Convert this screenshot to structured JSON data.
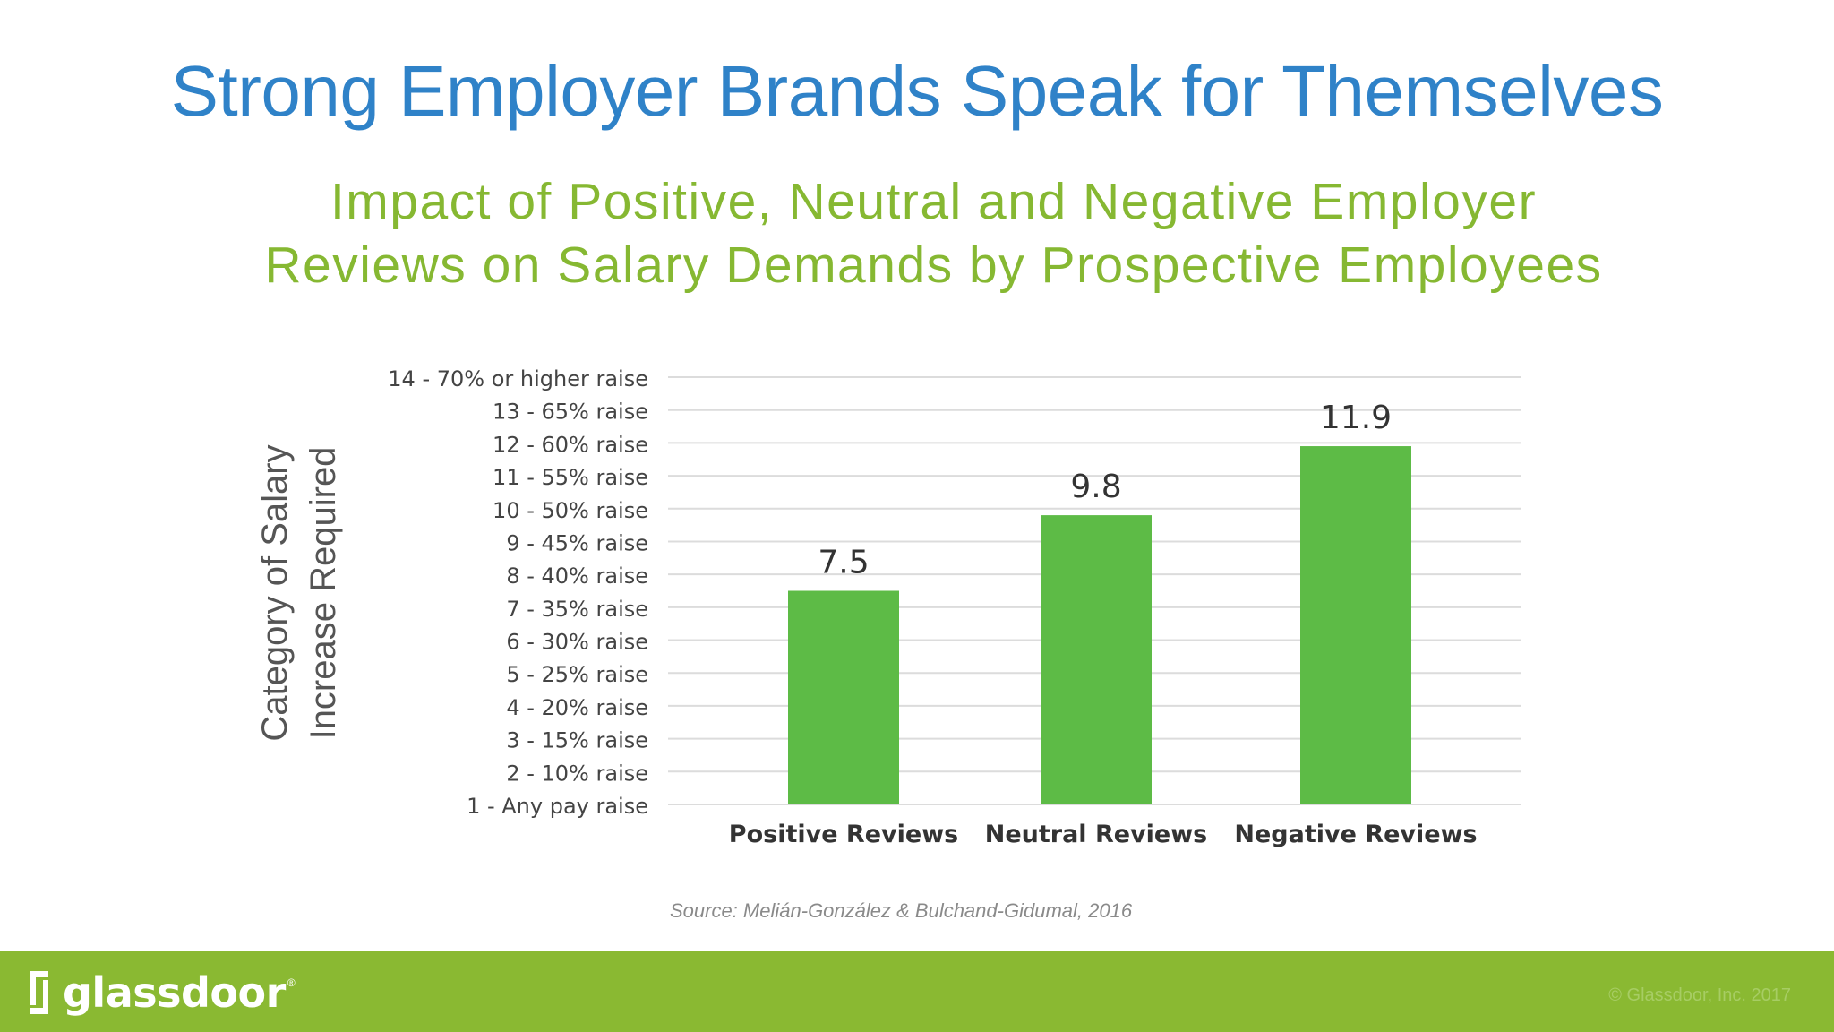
{
  "slide": {
    "title": "Strong Employer Brands Speak for Themselves"
  },
  "chart_data": {
    "type": "bar",
    "title": "Impact of Positive, Neutral and Negative Employer Reviews on Salary Demands by Prospective Employees",
    "title_lines": [
      "Impact of Positive, Neutral and Negative Employer",
      "Reviews on Salary Demands by Prospective Employees"
    ],
    "ylabel": "Category of Salary Increase Required",
    "ylabel_lines": [
      "Category of Salary",
      "Increase Required"
    ],
    "xlabel": "",
    "categories": [
      "Positive Reviews",
      "Neutral Reviews",
      "Negative Reviews"
    ],
    "values": [
      7.5,
      9.8,
      11.9
    ],
    "data_labels": [
      "7.5",
      "9.8",
      "11.9"
    ],
    "ylim": [
      1,
      14
    ],
    "y_ticks": [
      {
        "value": 1,
        "label": "1 - Any pay raise"
      },
      {
        "value": 2,
        "label": "2 - 10% raise"
      },
      {
        "value": 3,
        "label": "3 - 15% raise"
      },
      {
        "value": 4,
        "label": "4 - 20% raise"
      },
      {
        "value": 5,
        "label": "5 - 25% raise"
      },
      {
        "value": 6,
        "label": "6 - 30% raise"
      },
      {
        "value": 7,
        "label": "7 - 35% raise"
      },
      {
        "value": 8,
        "label": "8 - 40% raise"
      },
      {
        "value": 9,
        "label": "9 - 45% raise"
      },
      {
        "value": 10,
        "label": "10 - 50% raise"
      },
      {
        "value": 11,
        "label": "11 - 55% raise"
      },
      {
        "value": 12,
        "label": "12 - 60% raise"
      },
      {
        "value": 13,
        "label": "13 - 65% raise"
      },
      {
        "value": 14,
        "label": "14 - 70% or higher raise"
      }
    ],
    "grid": true,
    "legend": "none",
    "colors": {
      "bar": "#5dbb46",
      "grid": "#dcdcdc",
      "tick_label": "#444444",
      "data_label": "#333333",
      "axis_title": "#555555"
    }
  },
  "source": "Source: Melián-González & Bulchand-Gidumal, 2016",
  "footer": {
    "brand": "glassdoor",
    "trademark": "®",
    "copyright": "© Glassdoor, Inc. 2017",
    "logo_icon": "glassdoor-logo-icon",
    "colors": {
      "background": "#8ab932",
      "text": "#ffffff"
    }
  }
}
